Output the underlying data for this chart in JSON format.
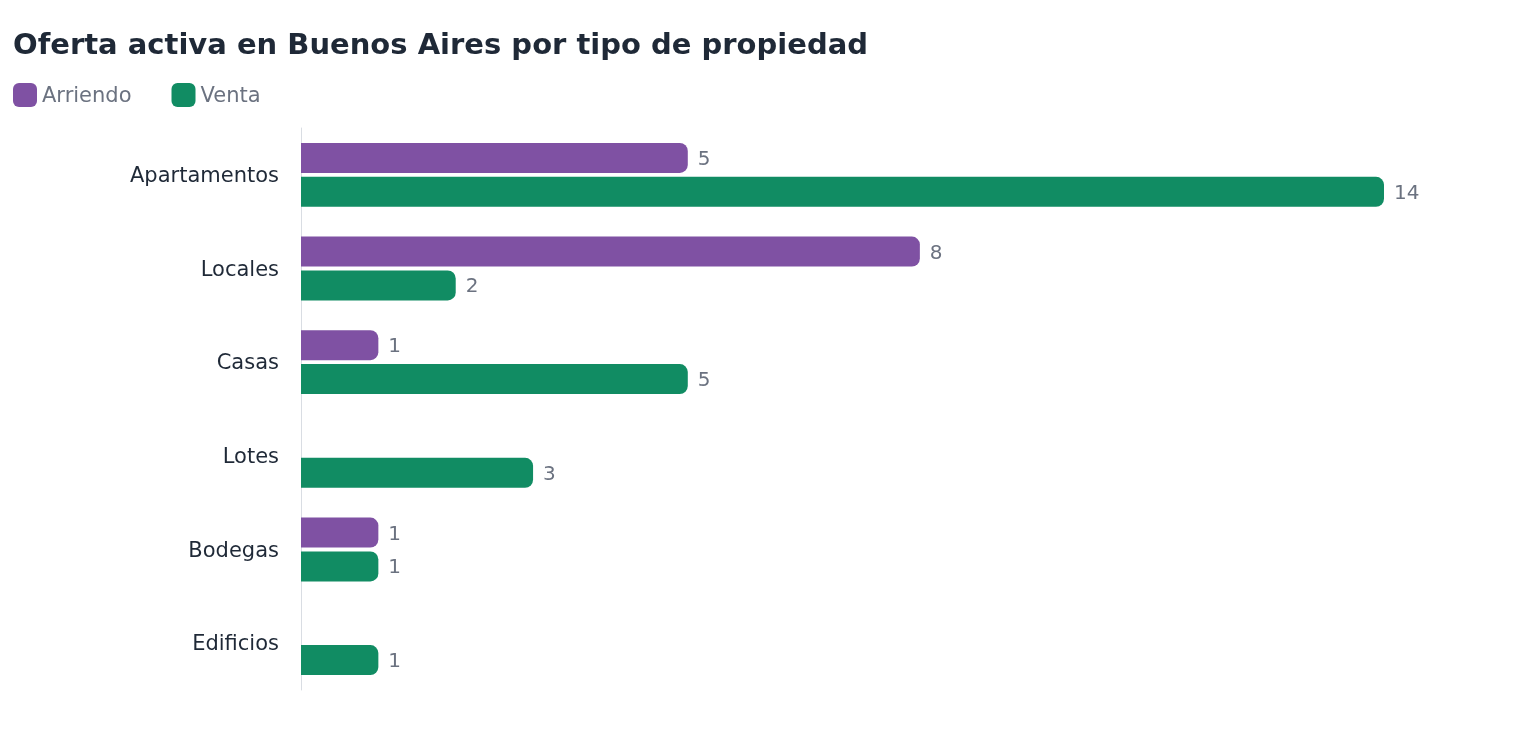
{
  "chart_data": {
    "type": "bar",
    "orientation": "horizontal",
    "title": "Oferta activa en Buenos Aires por tipo de propiedad",
    "categories": [
      "Apartamentos",
      "Locales",
      "Casas",
      "Lotes",
      "Bodegas",
      "Edificios"
    ],
    "series": [
      {
        "name": "Arriendo",
        "color": "#7f51a3",
        "values": [
          5,
          8,
          1,
          null,
          1,
          null
        ]
      },
      {
        "name": "Venta",
        "color": "#118c63",
        "values": [
          14,
          2,
          5,
          3,
          1,
          1
        ]
      }
    ],
    "data_labels": true,
    "legend": "top left"
  }
}
